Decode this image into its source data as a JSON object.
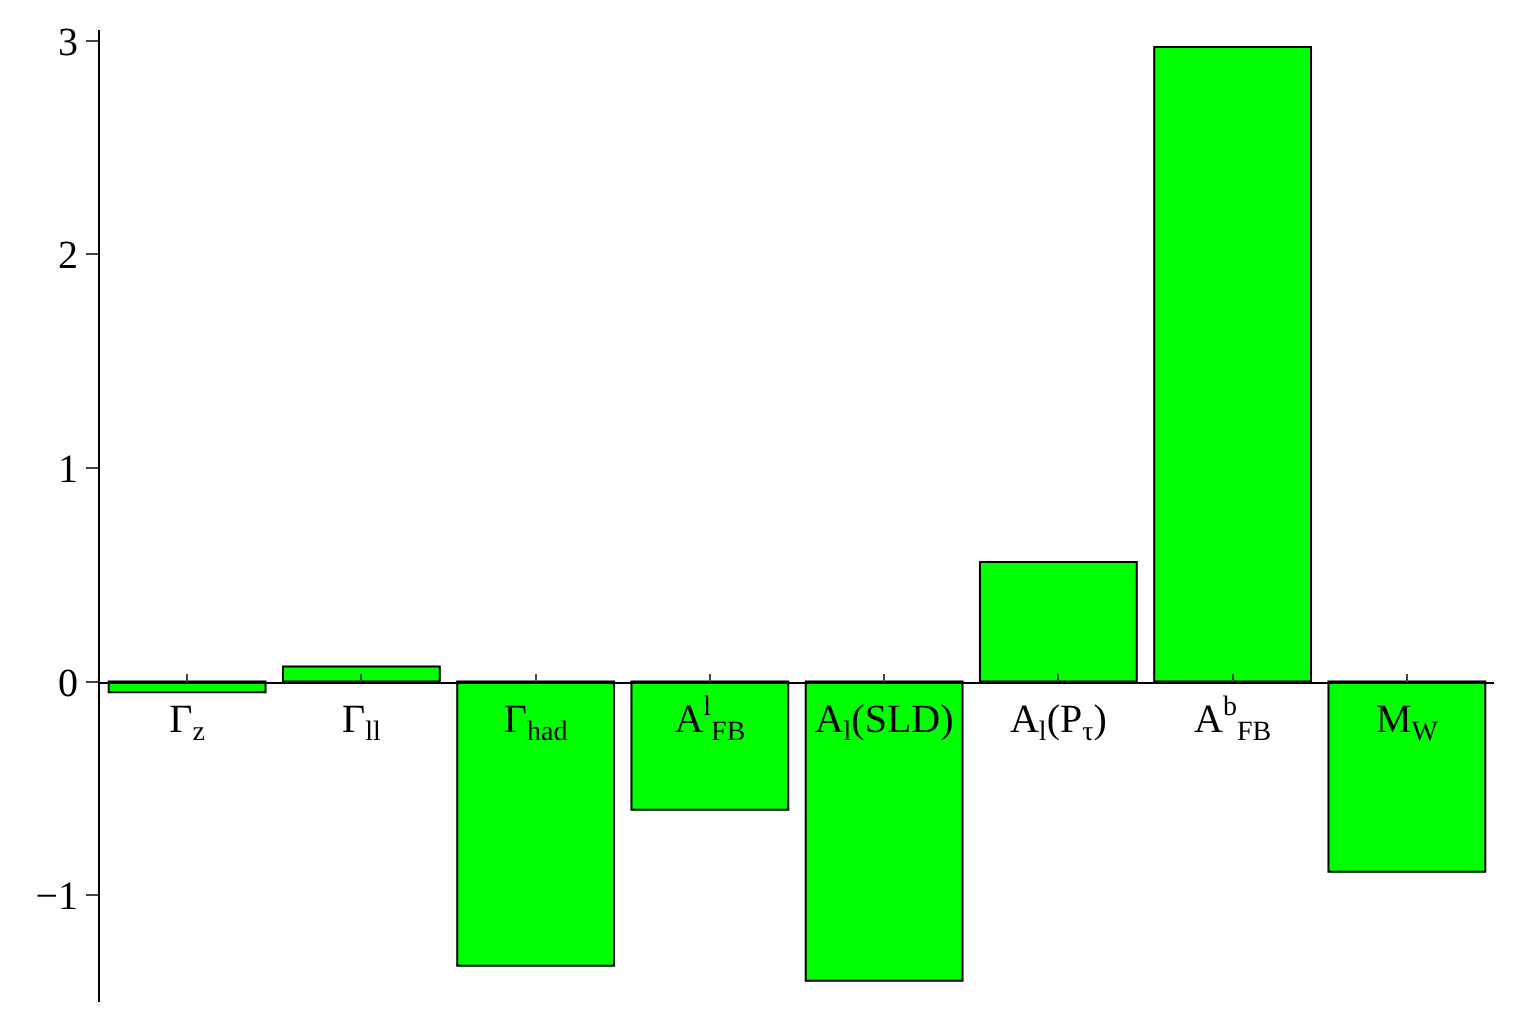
{
  "chart_data": {
    "type": "bar",
    "categories": [
      "Γ$_{z}$",
      "Γ$_{ll}$",
      "Γ$_{had}$",
      "A$^{l}$$_{FB}$",
      "A$_{l}$(SLD)",
      "A$_{l}$(P$_{τ}$)",
      "A$^{b}$$_{FB}$",
      "M$_{W}$"
    ],
    "values": [
      -0.05,
      0.07,
      -1.33,
      -0.6,
      -1.4,
      0.56,
      2.97,
      -0.89
    ],
    "color": "#00ff00",
    "ylim": [
      -1.5,
      3.05
    ],
    "yticks": [
      {
        "value": -1,
        "label": "−1"
      },
      0,
      1,
      2,
      3
    ],
    "legend": false
  }
}
